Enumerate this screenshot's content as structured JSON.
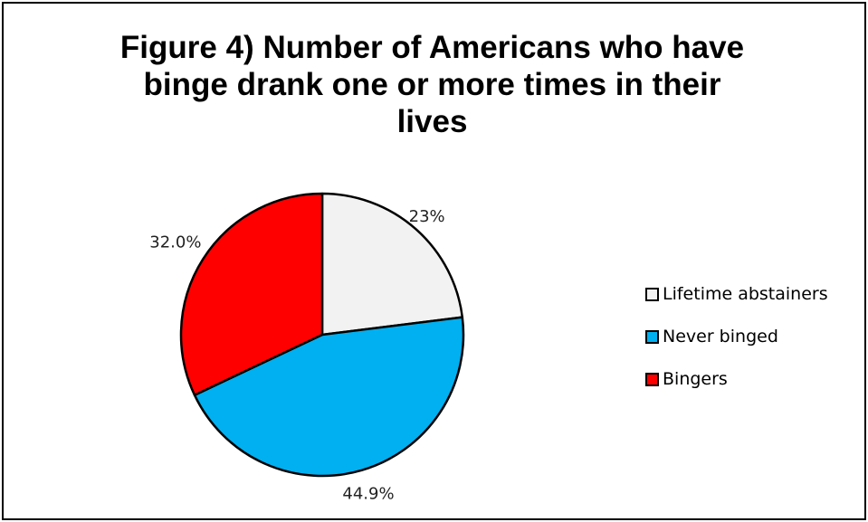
{
  "chart_data": {
    "type": "pie",
    "title_lines": [
      "Figure 4) Number of Americans who have",
      "binge drank one or more times in their",
      "lives"
    ],
    "categories": [
      "Lifetime abstainers",
      "Never binged",
      "Bingers"
    ],
    "values": [
      23.0,
      44.9,
      32.0
    ],
    "data_labels": [
      "23%",
      "44.9%",
      "32.0%"
    ],
    "colors": [
      "#F2F2F2",
      "#00B0F0",
      "#FF0000"
    ],
    "start_angle_deg": 0,
    "direction": "clockwise",
    "legend_position": "right"
  }
}
